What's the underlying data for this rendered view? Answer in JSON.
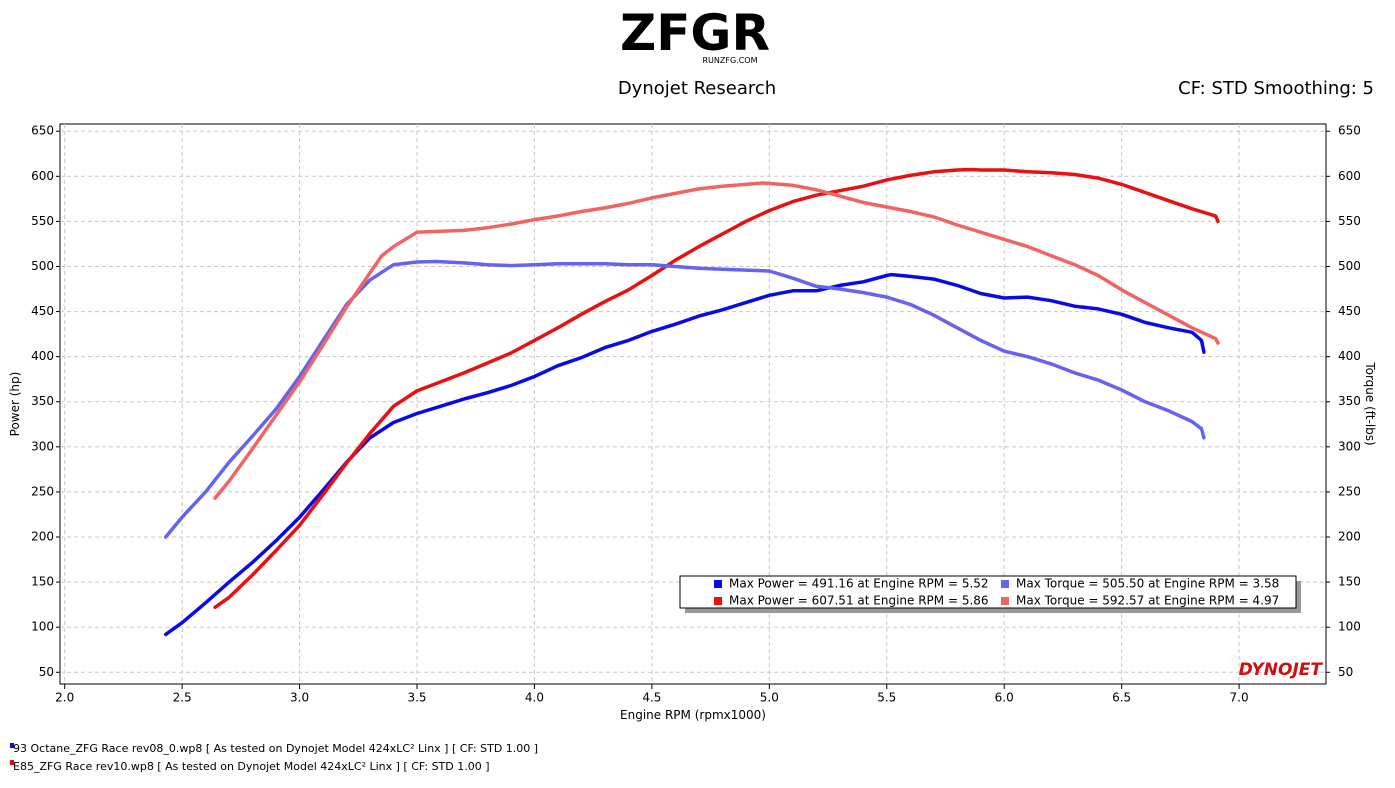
{
  "chart_data": {
    "type": "line",
    "logo": "ZFGR",
    "logo_sub": "RUNZFG.COM",
    "title": "Dynojet Research",
    "subtitle": "CF: STD Smoothing: 5",
    "watermark": "DYNOJET",
    "xlabel": "Engine RPM (rpmx1000)",
    "ylabel": "Power (hp)",
    "y2label": "Torque (ft-lbs)",
    "xlim": [
      1.98,
      7.37
    ],
    "ylim": [
      37,
      658
    ],
    "y2lim": [
      37,
      658
    ],
    "xticks": [
      {
        "value": 2,
        "label": "2.0"
      },
      2.5,
      {
        "value": 3,
        "label": "3.0"
      },
      3.5,
      {
        "value": 4,
        "label": "4.0"
      },
      4.5,
      {
        "value": 5,
        "label": "5.0"
      },
      5.5,
      {
        "value": 6,
        "label": "6.0"
      },
      6.5,
      {
        "value": 7,
        "label": "7.0"
      }
    ],
    "yticks": [
      50,
      100,
      150,
      200,
      250,
      300,
      350,
      400,
      450,
      500,
      550,
      600,
      650
    ],
    "y2ticks": [
      50,
      100,
      150,
      200,
      250,
      300,
      350,
      400,
      450,
      500,
      550,
      600,
      650
    ],
    "grid": true,
    "legend": "lower right",
    "series": [
      {
        "name": "Max Power = 491.16 at Engine RPM = 5.52",
        "color": "#0a0ae6",
        "axis": "y",
        "x": [
          2.43,
          2.5,
          2.6,
          2.7,
          2.8,
          2.9,
          3.0,
          3.1,
          3.2,
          3.3,
          3.4,
          3.5,
          3.6,
          3.7,
          3.8,
          3.9,
          4.0,
          4.1,
          4.2,
          4.3,
          4.4,
          4.5,
          4.6,
          4.7,
          4.8,
          4.9,
          5.0,
          5.1,
          5.2,
          5.3,
          5.4,
          5.5,
          5.52,
          5.6,
          5.7,
          5.8,
          5.9,
          6.0,
          6.1,
          6.2,
          6.3,
          6.4,
          6.5,
          6.6,
          6.7,
          6.8,
          6.84,
          6.85
        ],
        "values": [
          92,
          105,
          127,
          150,
          172,
          196,
          222,
          252,
          283,
          310,
          327,
          337,
          345,
          353,
          360,
          368,
          378,
          390,
          399,
          410,
          418,
          428,
          436,
          445,
          452,
          460,
          468,
          473,
          473,
          479,
          483,
          490,
          491,
          489,
          486,
          479,
          470,
          465,
          466,
          462,
          456,
          453,
          447,
          438,
          432,
          427,
          418,
          405
        ]
      },
      {
        "name": "Max Power = 607.51 at Engine RPM = 5.86",
        "color": "#e81010",
        "axis": "y",
        "x": [
          2.64,
          2.7,
          2.8,
          2.9,
          3.0,
          3.1,
          3.2,
          3.3,
          3.35,
          3.4,
          3.5,
          3.6,
          3.7,
          3.8,
          3.9,
          4.0,
          4.1,
          4.2,
          4.3,
          4.4,
          4.5,
          4.6,
          4.7,
          4.8,
          4.9,
          5.0,
          5.1,
          5.2,
          5.3,
          5.4,
          5.5,
          5.6,
          5.7,
          5.8,
          5.86,
          5.9,
          6.0,
          6.1,
          6.2,
          6.3,
          6.4,
          6.5,
          6.6,
          6.7,
          6.8,
          6.9,
          6.91
        ],
        "values": [
          122,
          133,
          158,
          185,
          213,
          247,
          282,
          315,
          330,
          345,
          362,
          372,
          382,
          393,
          404,
          418,
          432,
          447,
          461,
          474,
          490,
          507,
          522,
          536,
          550,
          562,
          572,
          579,
          584,
          589,
          596,
          601,
          605,
          607,
          607.5,
          607,
          607,
          605,
          604,
          602,
          598,
          591,
          582,
          573,
          564,
          556,
          550
        ]
      },
      {
        "name": "Max Torque = 505.50 at Engine RPM = 3.58",
        "color": "#6464ee",
        "axis": "y2",
        "x": [
          2.43,
          2.5,
          2.6,
          2.7,
          2.8,
          2.9,
          3.0,
          3.1,
          3.2,
          3.3,
          3.4,
          3.5,
          3.58,
          3.7,
          3.8,
          3.9,
          4.0,
          4.1,
          4.2,
          4.3,
          4.4,
          4.5,
          4.6,
          4.7,
          4.8,
          4.9,
          5.0,
          5.1,
          5.2,
          5.3,
          5.4,
          5.5,
          5.6,
          5.7,
          5.8,
          5.9,
          6.0,
          6.1,
          6.2,
          6.3,
          6.4,
          6.5,
          6.6,
          6.7,
          6.8,
          6.84,
          6.85
        ],
        "values": [
          200,
          222,
          250,
          283,
          312,
          342,
          378,
          418,
          458,
          485,
          502,
          505,
          505.5,
          504,
          502,
          501,
          502,
          503,
          503,
          503,
          502,
          502,
          500,
          498,
          497,
          496,
          495,
          487,
          478,
          475,
          471,
          466,
          458,
          446,
          432,
          418,
          406,
          400,
          392,
          382,
          374,
          363,
          350,
          340,
          328,
          320,
          310
        ]
      },
      {
        "name": "Max Torque = 592.57 at Engine RPM = 4.97",
        "color": "#f06464",
        "axis": "y2",
        "x": [
          2.64,
          2.7,
          2.8,
          2.9,
          3.0,
          3.1,
          3.2,
          3.3,
          3.35,
          3.4,
          3.5,
          3.6,
          3.7,
          3.8,
          3.9,
          4.0,
          4.1,
          4.2,
          4.3,
          4.4,
          4.5,
          4.6,
          4.7,
          4.8,
          4.9,
          4.97,
          5.0,
          5.1,
          5.2,
          5.3,
          5.4,
          5.5,
          5.6,
          5.7,
          5.8,
          5.9,
          6.0,
          6.1,
          6.2,
          6.3,
          6.4,
          6.5,
          6.6,
          6.7,
          6.8,
          6.9,
          6.91
        ],
        "values": [
          243,
          262,
          298,
          335,
          372,
          413,
          455,
          493,
          512,
          522,
          538,
          539,
          540,
          543,
          547,
          552,
          556,
          561,
          565,
          570,
          576,
          581,
          586,
          589,
          591,
          592.6,
          592,
          590,
          585,
          578,
          571,
          566,
          561,
          555,
          546,
          538,
          530,
          522,
          512,
          502,
          490,
          474,
          460,
          446,
          432,
          420,
          415
        ]
      }
    ],
    "footnotes": [
      "93 Octane_ZFG Race rev08_0.wp8 [ As tested on Dynojet Model 424xLC² Linx ] [ CF: STD 1.00 ]",
      "E85_ZFG Race rev10.wp8 [ As tested on Dynojet Model 424xLC² Linx ] [ CF: STD 1.00 ]"
    ]
  }
}
